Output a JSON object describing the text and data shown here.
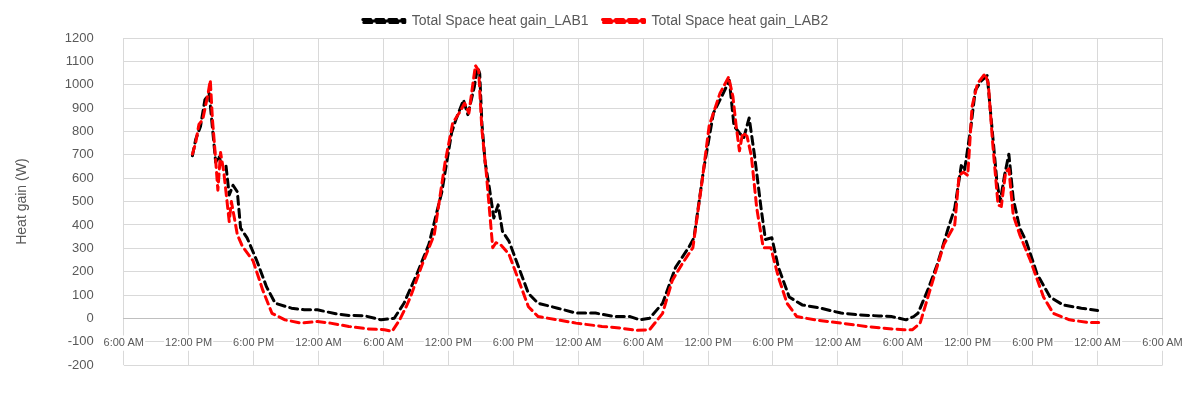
{
  "chart_data": {
    "type": "line",
    "ylabel": "Heat gain (W)",
    "legend": "top",
    "grid": true,
    "line_style": "dashed",
    "marker": "none",
    "xlim": [
      "--01-01T06:00",
      "--01-05T06:00"
    ],
    "xticks": [
      {
        "value": "--01-01T06:00",
        "label": "6:00 AM"
      },
      {
        "value": "--01-01T12:00",
        "label": "12:00 PM"
      },
      {
        "value": "--01-01T18:00",
        "label": "6:00 PM"
      },
      {
        "value": "--01-02T00:00",
        "label": "12:00 AM"
      },
      {
        "value": "--01-02T06:00",
        "label": "6:00 AM"
      },
      {
        "value": "--01-02T12:00",
        "label": "12:00 PM"
      },
      {
        "value": "--01-02T18:00",
        "label": "6:00 PM"
      },
      {
        "value": "--01-03T00:00",
        "label": "12:00 AM"
      },
      {
        "value": "--01-03T06:00",
        "label": "6:00 AM"
      },
      {
        "value": "--01-03T12:00",
        "label": "12:00 PM"
      },
      {
        "value": "--01-03T18:00",
        "label": "6:00 PM"
      },
      {
        "value": "--01-04T00:00",
        "label": "12:00 AM"
      },
      {
        "value": "--01-04T06:00",
        "label": "6:00 AM"
      },
      {
        "value": "--01-04T12:00",
        "label": "12:00 PM"
      },
      {
        "value": "--01-04T18:00",
        "label": "6:00 PM"
      },
      {
        "value": "--01-05T00:00",
        "label": "12:00 AM"
      },
      {
        "value": "--01-05T06:00",
        "label": "6:00 AM"
      }
    ],
    "ylim": [
      -200,
      1200
    ],
    "yticks": [
      -200,
      -100,
      0,
      100,
      200,
      300,
      400,
      500,
      600,
      700,
      800,
      900,
      1000,
      1100,
      1200
    ],
    "series": [
      {
        "name": "Total Space heat gain_LAB1",
        "color": "#000000",
        "x": [
          "--01-01T12:21",
          "--01-01T12:39",
          "--01-01T13:06",
          "--01-01T13:30",
          "--01-01T13:54",
          "--01-01T14:06",
          "--01-01T14:18",
          "--01-01T14:30",
          "--01-01T14:48",
          "--01-01T15:00",
          "--01-01T15:27",
          "--01-01T15:45",
          "--01-01T16:06",
          "--01-01T16:30",
          "--01-01T16:48",
          "--01-01T17:24",
          "--01-01T18:18",
          "--01-01T19:12",
          "--01-01T20:00",
          "--01-01T21:30",
          "--01-01T22:42",
          "--01-01T23:54",
          "--01-02T01:36",
          "--01-02T02:48",
          "--01-02T04:18",
          "--01-02T05:48",
          "--01-02T07:00",
          "--01-02T07:54",
          "--01-02T09:06",
          "--01-02T10:12",
          "--01-02T11:24",
          "--01-02T12:18",
          "--01-02T12:42",
          "--01-02T13:24",
          "--01-02T13:48",
          "--01-02T14:24",
          "--01-02T14:42",
          "--01-02T14:54",
          "--01-02T15:06",
          "--01-02T15:24",
          "--01-02T15:48",
          "--01-02T16:12",
          "--01-02T16:36",
          "--01-02T17:00",
          "--01-02T17:36",
          "--01-02T18:30",
          "--01-02T19:24",
          "--01-02T20:18",
          "--01-02T22:06",
          "--01-02T23:48",
          "--01-03T01:36",
          "--01-03T03:24",
          "--01-03T04:48",
          "--01-03T05:42",
          "--01-03T06:36",
          "--01-03T07:48",
          "--01-03T09:00",
          "--01-03T10:12",
          "--01-03T10:42",
          "--01-03T11:36",
          "--01-03T12:30",
          "--01-03T13:24",
          "--01-03T13:58",
          "--01-03T14:24",
          "--01-03T14:54",
          "--01-03T15:18",
          "--01-03T15:48",
          "--01-03T16:18",
          "--01-03T16:54",
          "--01-03T17:18",
          "--01-03T17:54",
          "--01-03T18:30",
          "--01-03T19:30",
          "--01-03T20:42",
          "--01-03T22:24",
          "--01-04T00:18",
          "--01-04T02:00",
          "--01-04T03:48",
          "--01-04T05:00",
          "--01-04T06:18",
          "--01-04T07:00",
          "--01-04T07:24",
          "--01-04T08:18",
          "--01-04T09:12",
          "--01-04T10:12",
          "--01-04T10:48",
          "--01-04T11:24",
          "--01-04T11:42",
          "--01-04T12:18",
          "--01-04T12:42",
          "--01-04T13:18",
          "--01-04T13:48",
          "--01-04T14:12",
          "--01-04T14:42",
          "--01-04T15:00",
          "--01-04T15:24",
          "--01-04T15:48",
          "--01-04T16:12",
          "--01-04T16:48",
          "--01-04T17:24",
          "--01-04T18:24",
          "--01-04T19:36",
          "--01-04T20:48",
          "--01-04T22:30",
          "--01-05T00:00"
        ],
        "values": [
          696,
          766,
          823,
          935,
          963,
          865,
          766,
          668,
          696,
          661,
          654,
          528,
          570,
          542,
          387,
          345,
          247,
          135,
          65,
          44,
          37,
          37,
          20,
          13,
          11,
          -6,
          1,
          65,
          191,
          317,
          542,
          794,
          851,
          935,
          872,
          991,
          1075,
          1047,
          836,
          668,
          556,
          430,
          486,
          373,
          331,
          219,
          107,
          65,
          44,
          23,
          23,
          8,
          8,
          -6,
          1,
          65,
          219,
          303,
          345,
          640,
          879,
          963,
          1019,
          823,
          794,
          773,
          858,
          696,
          472,
          338,
          345,
          219,
          92,
          58,
          44,
          23,
          15,
          11,
          8,
          -6,
          8,
          22,
          121,
          233,
          387,
          472,
          654,
          633,
          823,
          977,
          1019,
          1040,
          836,
          584,
          500,
          612,
          703,
          514,
          387,
          331,
          191,
          92,
          58,
          44,
          34
        ]
      },
      {
        "name": "Total Space heat gain_LAB2",
        "color": "#ff0000",
        "x": [
          "--01-01T12:21",
          "--01-01T12:39",
          "--01-01T12:57",
          "--01-01T13:18",
          "--01-01T13:48",
          "--01-01T14:00",
          "--01-01T14:12",
          "--01-01T14:24",
          "--01-01T14:42",
          "--01-01T14:57",
          "--01-01T15:15",
          "--01-01T15:45",
          "--01-01T15:57",
          "--01-01T16:30",
          "--01-01T16:57",
          "--01-01T17:57",
          "--01-01T18:51",
          "--01-01T19:42",
          "--01-01T20:54",
          "--01-01T22:24",
          "--01-01T23:54",
          "--01-02T01:06",
          "--01-02T02:48",
          "--01-02T04:36",
          "--01-02T06:06",
          "--01-02T06:48",
          "--01-02T07:30",
          "--01-02T08:06",
          "--01-02T08:30",
          "--01-02T09:36",
          "--01-02T10:42",
          "--01-02T11:42",
          "--01-02T12:24",
          "--01-02T13:00",
          "--01-02T13:30",
          "--01-02T13:54",
          "--01-02T14:30",
          "--01-02T14:48",
          "--01-02T15:06",
          "--01-02T15:30",
          "--01-02T16:06",
          "--01-02T16:24",
          "--01-02T16:48",
          "--01-02T17:36",
          "--01-02T18:30",
          "--01-02T19:24",
          "--01-02T20:18",
          "--01-02T22:06",
          "--01-02T23:48",
          "--01-03T02:12",
          "--01-03T03:54",
          "--01-03T05:24",
          "--01-03T06:36",
          "--01-03T07:48",
          "--01-03T08:42",
          "--01-03T09:36",
          "--01-03T10:36",
          "--01-03T11:24",
          "--01-03T12:06",
          "--01-03T13:06",
          "--01-03T13:54",
          "--01-03T14:18",
          "--01-03T14:36",
          "--01-03T14:54",
          "--01-03T15:12",
          "--01-03T15:36",
          "--01-03T16:00",
          "--01-03T16:30",
          "--01-03T17:06",
          "--01-03T17:48",
          "--01-03T18:30",
          "--01-03T19:18",
          "--01-03T20:12",
          "--01-03T21:54",
          "--01-04T00:18",
          "--01-04T02:36",
          "--01-04T05:00",
          "--01-04T06:06",
          "--01-04T06:54",
          "--01-04T07:36",
          "--01-04T08:36",
          "--01-04T09:48",
          "--01-04T10:48",
          "--01-04T11:12",
          "--01-04T11:36",
          "--01-04T12:00",
          "--01-04T12:24",
          "--01-04T12:54",
          "--01-04T13:36",
          "--01-04T13:54",
          "--01-04T14:18",
          "--01-04T14:48",
          "--01-04T15:06",
          "--01-04T15:30",
          "--01-04T15:48",
          "--01-04T16:12",
          "--01-04T16:48",
          "--01-04T17:48",
          "--01-04T19:00",
          "--01-04T19:54",
          "--01-04T21:24",
          "--01-04T23:06",
          "--01-05T00:06"
        ],
        "values": [
          703,
          752,
          830,
          851,
          963,
          1019,
          851,
          738,
          549,
          710,
          626,
          415,
          500,
          359,
          310,
          247,
          121,
          22,
          -6,
          -20,
          -13,
          -20,
          -34,
          -45,
          -48,
          -55,
          -6,
          50,
          92,
          233,
          359,
          668,
          836,
          879,
          921,
          879,
          1082,
          1061,
          808,
          626,
          303,
          324,
          317,
          275,
          163,
          50,
          8,
          -6,
          -20,
          -34,
          -41,
          -51,
          -48,
          22,
          163,
          233,
          303,
          570,
          823,
          963,
          1033,
          949,
          823,
          717,
          794,
          780,
          696,
          472,
          303,
          303,
          177,
          65,
          8,
          -6,
          -20,
          -34,
          -45,
          -48,
          -48,
          -20,
          135,
          317,
          401,
          612,
          626,
          612,
          907,
          1005,
          1047,
          1005,
          752,
          486,
          479,
          626,
          640,
          443,
          359,
          247,
          92,
          22,
          -6,
          -17,
          -17
        ]
      }
    ]
  }
}
